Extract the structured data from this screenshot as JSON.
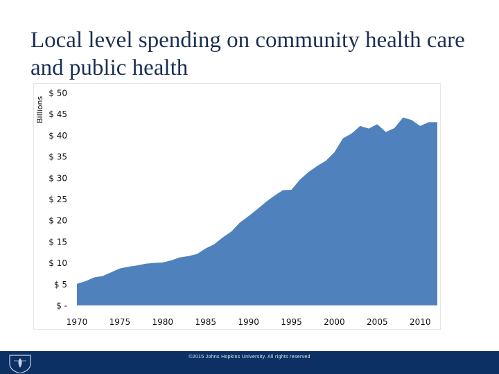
{
  "title": "Local level spending on community health care and public health",
  "footer": {
    "copyright": "©2015 Johns Hopkins University. All rights reserved"
  },
  "colors": {
    "area": "#4f81bd",
    "title": "#1b2f52",
    "footer_bar": "#0c2f64"
  },
  "icons": {
    "logo": "university-shield-icon"
  },
  "chart_data": {
    "type": "area",
    "ylabel": "Billions",
    "xlabel": "",
    "ylim": [
      0,
      50
    ],
    "xlim": [
      1970,
      2012
    ],
    "grid": false,
    "y_ticks": [
      {
        "value": 50,
        "label": "$ 50"
      },
      {
        "value": 45,
        "label": "$ 45"
      },
      {
        "value": 40,
        "label": "$ 40"
      },
      {
        "value": 35,
        "label": "$ 35"
      },
      {
        "value": 30,
        "label": "$ 30"
      },
      {
        "value": 25,
        "label": "$ 25"
      },
      {
        "value": 20,
        "label": "$ 20"
      },
      {
        "value": 15,
        "label": "$ 15"
      },
      {
        "value": 10,
        "label": "$ 10"
      },
      {
        "value": 5,
        "label": "$ 5"
      },
      {
        "value": 0,
        "label": "$ -"
      }
    ],
    "x_ticks": [
      {
        "value": 1970,
        "label": "1970"
      },
      {
        "value": 1975,
        "label": "1975"
      },
      {
        "value": 1980,
        "label": "1980"
      },
      {
        "value": 1985,
        "label": "1985"
      },
      {
        "value": 1990,
        "label": "1990"
      },
      {
        "value": 1995,
        "label": "1995"
      },
      {
        "value": 2000,
        "label": "2000"
      },
      {
        "value": 2005,
        "label": "2005"
      },
      {
        "value": 2010,
        "label": "2010"
      }
    ],
    "x": [
      1970,
      1971,
      1972,
      1973,
      1974,
      1975,
      1976,
      1977,
      1978,
      1979,
      1980,
      1981,
      1982,
      1983,
      1984,
      1985,
      1986,
      1987,
      1988,
      1989,
      1990,
      1991,
      1992,
      1993,
      1994,
      1995,
      1996,
      1997,
      1998,
      1999,
      2000,
      2001,
      2002,
      2003,
      2004,
      2005,
      2006,
      2007,
      2008,
      2009,
      2010,
      2011,
      2012
    ],
    "values": [
      5.1,
      5.7,
      6.6,
      6.9,
      7.8,
      8.7,
      9.1,
      9.4,
      9.8,
      10.0,
      10.1,
      10.6,
      11.3,
      11.6,
      12.1,
      13.4,
      14.4,
      16.0,
      17.4,
      19.5,
      21.0,
      22.6,
      24.3,
      25.8,
      27.1,
      27.2,
      29.6,
      31.4,
      32.8,
      34.0,
      36.0,
      39.3,
      40.4,
      42.2,
      41.6,
      42.6,
      40.8,
      41.7,
      44.2,
      43.6,
      42.2,
      43.1,
      43.1
    ]
  }
}
